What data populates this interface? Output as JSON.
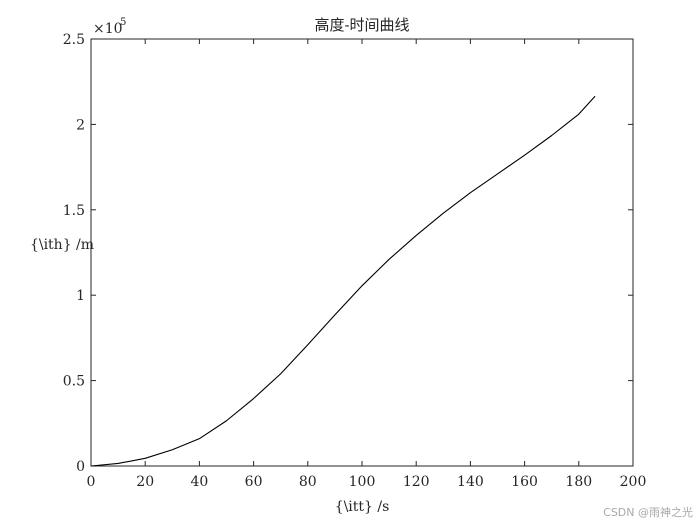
{
  "chart_data": {
    "type": "line",
    "title": "高度-时间曲线",
    "xlabel": "{\\itt} /s",
    "ylabel": "{\\ith} /m",
    "xlim": [
      0,
      200
    ],
    "ylim": [
      0,
      250000
    ],
    "x_ticks": [
      0,
      20,
      40,
      60,
      80,
      100,
      120,
      140,
      160,
      180,
      200
    ],
    "y_ticks": [
      0,
      50000,
      100000,
      150000,
      200000,
      250000
    ],
    "y_tick_labels": [
      "0",
      "0.5",
      "1",
      "1.5",
      "2",
      "2.5"
    ],
    "y_exponent_prefix": "×10",
    "y_exponent_power": "5",
    "grid": false,
    "line_color": "#000000",
    "series": [
      {
        "x": [
          0,
          10,
          20,
          30,
          40,
          50,
          60,
          70,
          80,
          90,
          100,
          110,
          120,
          130,
          140,
          150,
          160,
          170,
          180,
          186
        ],
        "values": [
          0,
          1500,
          4500,
          9500,
          16000,
          26500,
          39500,
          54000,
          71000,
          88500,
          105500,
          121000,
          135000,
          148000,
          160000,
          171000,
          182000,
          193500,
          206000,
          216500
        ]
      }
    ]
  },
  "watermark": "CSDN @雨神之光"
}
